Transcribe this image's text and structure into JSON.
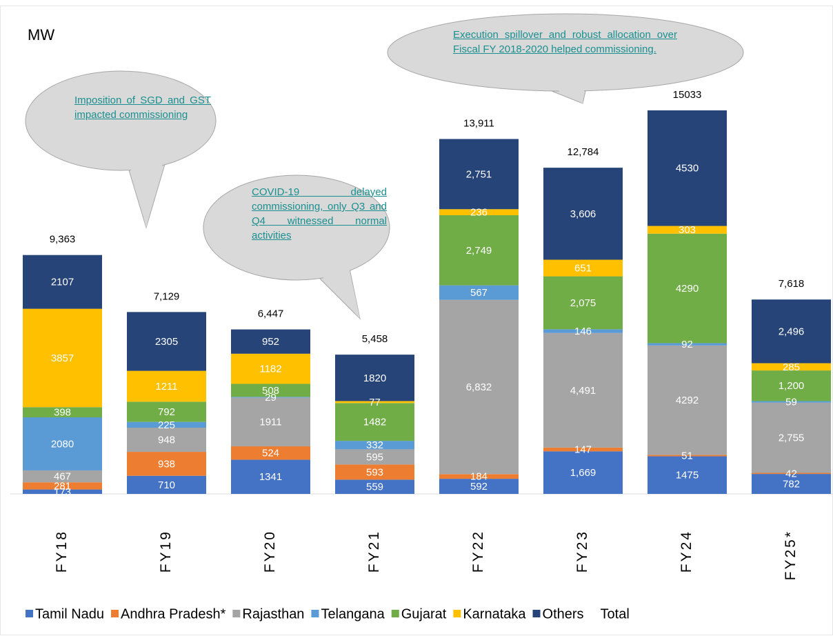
{
  "chart_data": {
    "type": "stacked-bar",
    "title": "MW",
    "categories": [
      "FY18",
      "FY19",
      "FY20",
      "FY21",
      "FY22",
      "FY23",
      "FY24",
      "FY25*"
    ],
    "series": [
      {
        "name": "Tamil Nadu",
        "color": "#4472c4",
        "values": [
          173,
          710,
          1341,
          559,
          592,
          1669,
          1475,
          782
        ],
        "value_labels": [
          "173",
          "710",
          "1341",
          "559",
          "592",
          "1,669",
          "1475",
          "782"
        ]
      },
      {
        "name": "Andhra Pradesh*",
        "color": "#ed7d31",
        "values": [
          281,
          938,
          524,
          593,
          184,
          147,
          51,
          42
        ]
      },
      {
        "name": "Rajasthan",
        "color": "#a5a5a5",
        "values": [
          467,
          948,
          1911,
          595,
          6832,
          4491,
          4292,
          2755
        ],
        "value_labels": [
          "467",
          "948",
          "1911",
          "595",
          "6,832",
          "4,491",
          "4292",
          "2,755"
        ]
      },
      {
        "name": "Telangana",
        "color": "#5b9bd5",
        "values": [
          2080,
          225,
          29,
          332,
          567,
          146,
          92,
          59
        ]
      },
      {
        "name": "Gujarat",
        "color": "#70ad47",
        "values": [
          398,
          792,
          508,
          1482,
          2749,
          2075,
          4290,
          1200
        ],
        "value_labels": [
          "398",
          "792",
          "508",
          "1482",
          "2,749",
          "2,075",
          "4290",
          "1,200"
        ]
      },
      {
        "name": "Karnataka",
        "color": "#ffc000",
        "values": [
          3857,
          1211,
          1182,
          77,
          236,
          651,
          303,
          285
        ]
      },
      {
        "name": "Others",
        "color": "#264478",
        "values": [
          2107,
          2305,
          952,
          1820,
          2751,
          3606,
          4530,
          2496
        ],
        "value_labels": [
          "2107",
          "2305",
          "952",
          "1820",
          "2,751",
          "3,606",
          "4530",
          "2,496"
        ]
      }
    ],
    "total": {
      "name": "Total",
      "values": [
        9363,
        7129,
        6447,
        5458,
        13911,
        12784,
        15033,
        7618
      ],
      "value_labels": [
        "9,363",
        "7,129",
        "6,447",
        "5,458",
        "13,911",
        "12,784",
        "15033",
        "7,618"
      ]
    },
    "annotations": [
      "Imposition of SGD and GST impacted commissioning",
      "COVID-19 delayed commissioning, only Q3 and Q4 witnessed normal activities",
      "Execution spillover and robust allocation over Fiscal FY 2018-2020 helped commissioning."
    ]
  }
}
